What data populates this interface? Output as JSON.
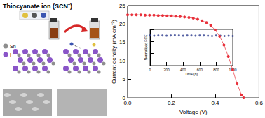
{
  "diagram": {
    "title": "Thiocyanate ion (SCN⁻)",
    "atoms": [
      "Sn",
      "I"
    ]
  },
  "chart_data": [
    {
      "type": "line",
      "xlabel": "Voltage (V)",
      "ylabel": "Current density (mA cm⁻²)",
      "x": [
        0.0,
        0.02,
        0.04,
        0.06,
        0.08,
        0.1,
        0.12,
        0.14,
        0.16,
        0.18,
        0.2,
        0.22,
        0.24,
        0.26,
        0.28,
        0.3,
        0.32,
        0.34,
        0.36,
        0.38,
        0.4,
        0.42,
        0.44,
        0.46,
        0.48,
        0.5,
        0.52,
        0.53
      ],
      "values": [
        22.5,
        22.5,
        22.5,
        22.5,
        22.4,
        22.4,
        22.4,
        22.3,
        22.3,
        22.2,
        22.2,
        22.1,
        22.0,
        21.9,
        21.8,
        21.6,
        21.3,
        20.9,
        20.4,
        19.6,
        18.4,
        16.7,
        14.3,
        11.2,
        7.6,
        3.8,
        0.8,
        0.0
      ],
      "color": "#e8303a",
      "marker": "circle",
      "line_style": "solid",
      "xlim": [
        0,
        0.6
      ],
      "xticks": [
        {
          "value": 0,
          "label": "0.0"
        },
        0.2,
        0.4,
        0.6
      ],
      "ylim": [
        0,
        25
      ],
      "yticks": [
        0,
        5,
        10,
        15,
        20,
        25
      ],
      "grid": false
    },
    {
      "type": "scatter",
      "xlabel": "Time (h)",
      "ylabel": "Normalized PCE",
      "x": [
        0,
        50,
        100,
        150,
        200,
        250,
        300,
        350,
        400,
        450,
        500,
        550,
        600,
        650,
        700,
        750,
        800,
        850,
        900,
        950,
        1000
      ],
      "values": [
        1.0,
        0.99,
        1.0,
        1.0,
        0.99,
        1.0,
        1.01,
        1.0,
        0.99,
        1.0,
        1.0,
        0.99,
        1.0,
        1.0,
        0.99,
        0.98,
        1.0,
        0.99,
        0.98,
        0.99,
        0.98
      ],
      "color": "#2b3a8c",
      "marker": "circle",
      "xlim": [
        0,
        1000
      ],
      "xticks": [
        0,
        200,
        400,
        600,
        800,
        1000
      ],
      "ylim": [
        0,
        1.2
      ],
      "yticks": [
        0,
        0.4,
        0.8,
        1.2
      ],
      "grid": false,
      "tick_labels": "x"
    }
  ]
}
